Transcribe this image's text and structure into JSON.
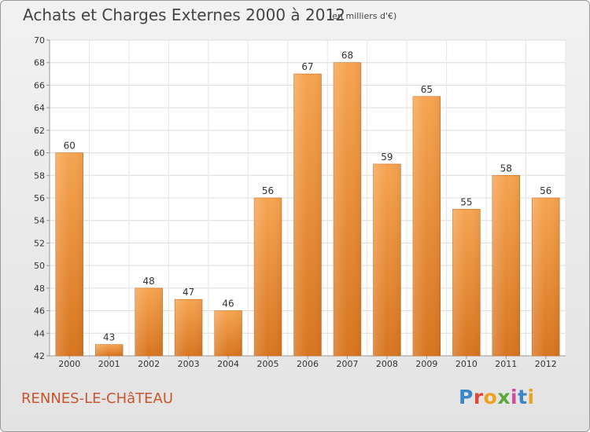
{
  "chart_data": {
    "type": "bar",
    "title": "Achats et Charges Externes 2000 à 2012",
    "subtitle": "(en milliers d'€)",
    "categories": [
      "2000",
      "2001",
      "2002",
      "2003",
      "2004",
      "2005",
      "2006",
      "2007",
      "2008",
      "2009",
      "2010",
      "2011",
      "2012"
    ],
    "values": [
      60,
      43,
      48,
      47,
      46,
      56,
      67,
      68,
      59,
      65,
      55,
      58,
      56
    ],
    "ylim": [
      42,
      70
    ],
    "yticks": [
      42,
      44,
      46,
      48,
      50,
      52,
      54,
      56,
      58,
      60,
      62,
      64,
      66,
      68,
      70
    ],
    "grid": true,
    "bar_color": "#f39a3a",
    "bar_color_dark": "#d6731e"
  },
  "location": "RENNES-LE-CHâTEAU",
  "logo_text": "Proxiti"
}
